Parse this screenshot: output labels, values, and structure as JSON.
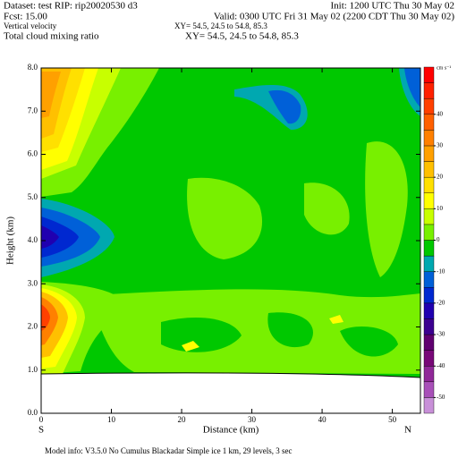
{
  "header": {
    "dataset": "Dataset: test   RIP: rip20020530  d3",
    "init": "Init: 1200 UTC Thu 30 May 02",
    "fcst": "Fcst:      15.00",
    "valid": "Valid: 0300 UTC Fri 31 May 02 (2200 CDT Thu 30 May 02)",
    "field1": "Vertical velocity",
    "xy1": "XY=  54.5, 24.5 to   54.8, 85.3",
    "field2": "Total cloud mixing ratio",
    "xy2": "XY=  54.5, 24.5 to   54.8, 85.3"
  },
  "chart_data": {
    "type": "contour",
    "xlabel": "Distance (km)",
    "ylabel": "Height (km)",
    "xlim": [
      0,
      54
    ],
    "xticks": [
      0,
      10,
      20,
      30,
      40,
      50
    ],
    "ylim": [
      0,
      8
    ],
    "yticks": [
      {
        "value": 0,
        "label": "0.0"
      },
      {
        "value": 1,
        "label": "1.0"
      },
      {
        "value": 2,
        "label": "2.0"
      },
      {
        "value": 3,
        "label": "3.0"
      },
      {
        "value": 4,
        "label": "4.0"
      },
      {
        "value": 5,
        "label": "5.0"
      },
      {
        "value": 6,
        "label": "6.0"
      },
      {
        "value": 7,
        "label": "7.0"
      },
      {
        "value": 8,
        "label": "8.0"
      }
    ],
    "x_end_labels": [
      "S",
      "N"
    ],
    "colorbar": {
      "unit": "cm s⁻¹",
      "lim": [
        -55,
        55
      ],
      "ticks": [
        40,
        30,
        20,
        10,
        0,
        -10,
        -20,
        -30,
        -40,
        -50
      ],
      "levels": [
        -55,
        -50,
        -45,
        -40,
        -35,
        -30,
        -25,
        -20,
        -15,
        -10,
        -5,
        0,
        5,
        10,
        15,
        20,
        25,
        30,
        35,
        40,
        45,
        50
      ],
      "colors": [
        "#c890d8",
        "#a850b8",
        "#902898",
        "#780878",
        "#600070",
        "#3c0090",
        "#2000b0",
        "#0028d0",
        "#0060d8",
        "#00a8b0",
        "#00c800",
        "#78f000",
        "#c8ff00",
        "#ffff00",
        "#ffe000",
        "#ffc000",
        "#ffa000",
        "#ff8000",
        "#ff6000",
        "#ff4000",
        "#ff2000",
        "#ff0000"
      ]
    }
  },
  "footer": "Model info: V3.5.0 No Cumulus Blackadar  Simple ice     1 km,  29 levels,      3 sec"
}
